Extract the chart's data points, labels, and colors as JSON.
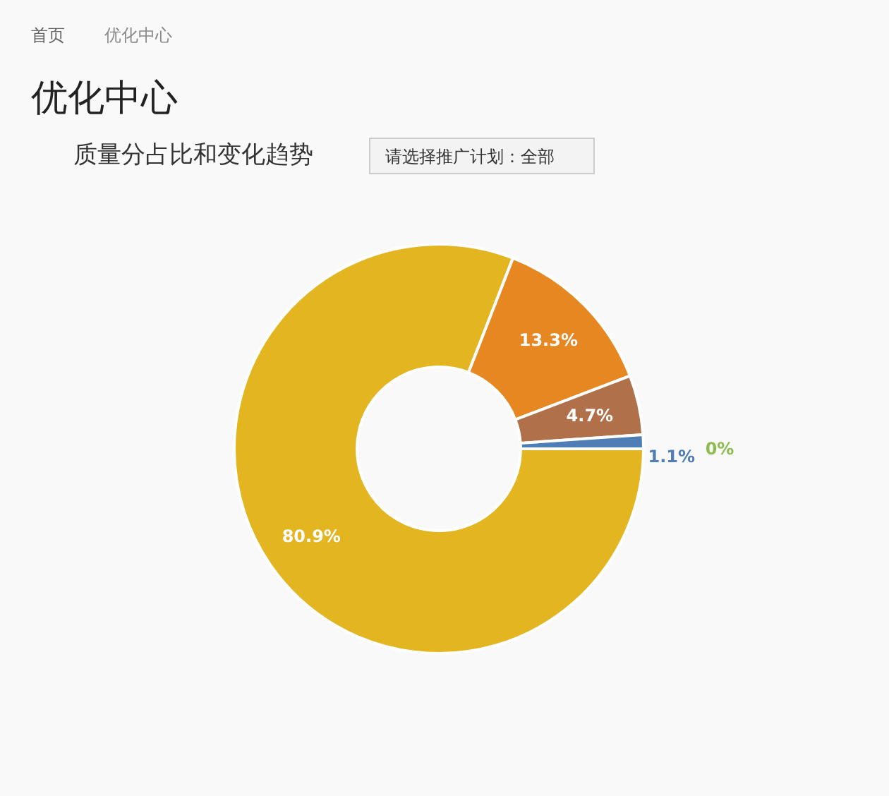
{
  "chart_data": {
    "type": "donut",
    "title": "优化中心",
    "subtitle": "质量分占比和变化趋势",
    "annotations": [
      "首页",
      "优化中心",
      "请选择推广计划：全部"
    ],
    "categories": [
      null,
      null,
      null,
      null,
      null
    ],
    "values": [
      80.9,
      13.3,
      4.7,
      1.1,
      0
    ],
    "colors": [
      "#e3b520",
      "#e68722",
      "#b0704a",
      "#4f7db5",
      "#8cbc4e"
    ],
    "value_labels": [
      "80.9%",
      "13.3%",
      "4.7%",
      "1.1%",
      "0%"
    ]
  }
}
